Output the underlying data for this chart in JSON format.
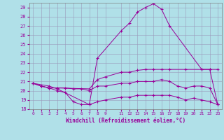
{
  "xlabel": "Windchill (Refroidissement éolien,°C)",
  "line_color": "#990099",
  "bg_color": "#b0e0e8",
  "grid_color": "#9999bb",
  "xlim": [
    -0.5,
    23.5
  ],
  "ylim": [
    18,
    29.5
  ],
  "yticks": [
    18,
    19,
    20,
    21,
    22,
    23,
    24,
    25,
    26,
    27,
    28,
    29
  ],
  "xticks": [
    0,
    1,
    2,
    3,
    4,
    5,
    6,
    7,
    8,
    9,
    11,
    12,
    13,
    14,
    15,
    16,
    17,
    18,
    19,
    20,
    21,
    22,
    23
  ],
  "lines": [
    {
      "x": [
        0,
        2,
        3,
        7,
        8,
        11,
        12,
        13,
        14,
        15,
        16,
        17,
        21,
        22,
        23
      ],
      "y": [
        20.8,
        20.5,
        20.2,
        18.5,
        23.5,
        26.5,
        27.3,
        28.5,
        29.0,
        29.4,
        28.8,
        27.0,
        22.3,
        22.3,
        18.5
      ]
    },
    {
      "x": [
        0,
        1,
        2,
        3,
        7,
        8,
        9,
        11,
        12,
        13,
        14,
        15,
        16,
        17,
        19,
        21,
        22,
        23
      ],
      "y": [
        20.8,
        20.5,
        20.3,
        20.3,
        20.2,
        21.2,
        21.5,
        22.0,
        22.0,
        22.2,
        22.3,
        22.3,
        22.3,
        22.3,
        22.3,
        22.3,
        22.3,
        22.3
      ]
    },
    {
      "x": [
        0,
        1,
        2,
        3,
        4,
        5,
        6,
        7,
        8,
        9,
        11,
        12,
        13,
        14,
        15,
        16,
        17,
        18,
        19,
        20,
        21,
        22,
        23
      ],
      "y": [
        20.8,
        20.5,
        20.3,
        20.3,
        20.3,
        20.2,
        20.2,
        20.0,
        20.5,
        20.5,
        20.8,
        20.8,
        21.0,
        21.0,
        21.0,
        21.2,
        21.0,
        20.5,
        20.3,
        20.5,
        20.5,
        20.3,
        18.5
      ]
    },
    {
      "x": [
        0,
        1,
        2,
        3,
        4,
        5,
        6,
        7,
        8,
        9,
        11,
        12,
        13,
        14,
        15,
        16,
        17,
        18,
        19,
        20,
        21,
        22,
        23
      ],
      "y": [
        20.8,
        20.5,
        20.3,
        20.0,
        19.8,
        18.8,
        18.5,
        18.5,
        18.8,
        19.0,
        19.3,
        19.3,
        19.5,
        19.5,
        19.5,
        19.5,
        19.5,
        19.3,
        19.0,
        19.2,
        19.0,
        18.8,
        18.5
      ]
    }
  ]
}
